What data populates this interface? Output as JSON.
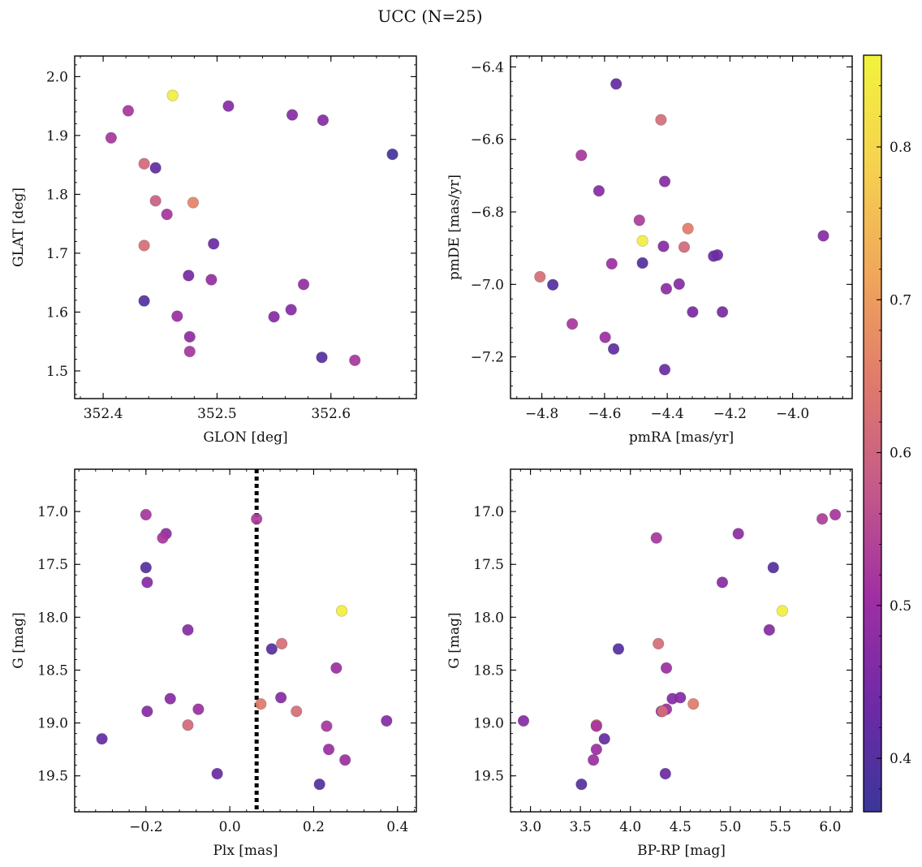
{
  "figure_title": "UCC (N=25)",
  "chart_data": [
    {
      "type": "scatter",
      "name": "glon-glat",
      "xlabel": "GLON [deg]",
      "ylabel": "GLAT [deg]",
      "xlim": [
        352.375,
        352.675
      ],
      "ylim": [
        1.453,
        2.035
      ],
      "xticks": [
        352.4,
        352.5,
        352.6
      ],
      "xtick_labels": [
        "352.4",
        "352.5",
        "352.6"
      ],
      "yticks": [
        1.5,
        1.6,
        1.7,
        1.8,
        1.9,
        2.0
      ],
      "ytick_labels": [
        "1.5",
        "1.6",
        "1.7",
        "1.8",
        "1.9",
        "2.0"
      ],
      "points": [
        {
          "x": 352.461,
          "y": 1.968,
          "c": 0.85
        },
        {
          "x": 352.407,
          "y": 1.896,
          "c": 0.52
        },
        {
          "x": 352.422,
          "y": 1.942,
          "c": 0.52
        },
        {
          "x": 352.51,
          "y": 1.95,
          "c": 0.47
        },
        {
          "x": 352.566,
          "y": 1.935,
          "c": 0.47
        },
        {
          "x": 352.593,
          "y": 1.926,
          "c": 0.47
        },
        {
          "x": 352.654,
          "y": 1.868,
          "c": 0.38
        },
        {
          "x": 352.436,
          "y": 1.852,
          "c": 0.61
        },
        {
          "x": 352.446,
          "y": 1.845,
          "c": 0.42
        },
        {
          "x": 352.446,
          "y": 1.789,
          "c": 0.59
        },
        {
          "x": 352.479,
          "y": 1.786,
          "c": 0.66
        },
        {
          "x": 352.456,
          "y": 1.766,
          "c": 0.52
        },
        {
          "x": 352.436,
          "y": 1.713,
          "c": 0.62
        },
        {
          "x": 352.497,
          "y": 1.716,
          "c": 0.43
        },
        {
          "x": 352.475,
          "y": 1.662,
          "c": 0.45
        },
        {
          "x": 352.495,
          "y": 1.655,
          "c": 0.49
        },
        {
          "x": 352.576,
          "y": 1.647,
          "c": 0.49
        },
        {
          "x": 352.436,
          "y": 1.619,
          "c": 0.4
        },
        {
          "x": 352.465,
          "y": 1.593,
          "c": 0.5
        },
        {
          "x": 352.565,
          "y": 1.604,
          "c": 0.47
        },
        {
          "x": 352.55,
          "y": 1.592,
          "c": 0.47
        },
        {
          "x": 352.476,
          "y": 1.558,
          "c": 0.48
        },
        {
          "x": 352.476,
          "y": 1.533,
          "c": 0.52
        },
        {
          "x": 352.592,
          "y": 1.523,
          "c": 0.4
        },
        {
          "x": 352.621,
          "y": 1.518,
          "c": 0.52
        }
      ]
    },
    {
      "type": "scatter",
      "name": "pmra-pmde",
      "xlabel": "pmRA [mas/yr]",
      "ylabel": "pmDE [mas/yr]",
      "xlim": [
        -4.9,
        -3.81
      ],
      "ylim": [
        -7.315,
        -6.37
      ],
      "xticks": [
        -4.8,
        -4.6,
        -4.4,
        -4.2,
        -4.0
      ],
      "xtick_labels": [
        "−4.8",
        "−4.6",
        "−4.4",
        "−4.2",
        "−4.0"
      ],
      "yticks": [
        -7.2,
        -7.0,
        -6.8,
        -6.6,
        -6.4
      ],
      "ytick_labels": [
        "−7.2",
        "−7.0",
        "−6.8",
        "−6.6",
        "−6.4"
      ],
      "points": [
        {
          "x": -4.563,
          "y": -6.447,
          "c": 0.42
        },
        {
          "x": -4.42,
          "y": -6.546,
          "c": 0.62
        },
        {
          "x": -4.674,
          "y": -6.644,
          "c": 0.52
        },
        {
          "x": -4.408,
          "y": -6.716,
          "c": 0.47
        },
        {
          "x": -4.618,
          "y": -6.742,
          "c": 0.47
        },
        {
          "x": -4.489,
          "y": -6.823,
          "c": 0.53
        },
        {
          "x": -4.334,
          "y": -6.846,
          "c": 0.65
        },
        {
          "x": -4.479,
          "y": -6.88,
          "c": 0.85
        },
        {
          "x": -4.412,
          "y": -6.895,
          "c": 0.47
        },
        {
          "x": -4.346,
          "y": -6.897,
          "c": 0.61
        },
        {
          "x": -4.24,
          "y": -6.919,
          "c": 0.44
        },
        {
          "x": -4.252,
          "y": -6.922,
          "c": 0.43
        },
        {
          "x": -3.902,
          "y": -6.866,
          "c": 0.47
        },
        {
          "x": -4.577,
          "y": -6.943,
          "c": 0.5
        },
        {
          "x": -4.479,
          "y": -6.941,
          "c": 0.4
        },
        {
          "x": -4.806,
          "y": -6.979,
          "c": 0.62
        },
        {
          "x": -4.765,
          "y": -7.001,
          "c": 0.4
        },
        {
          "x": -4.362,
          "y": -6.999,
          "c": 0.47
        },
        {
          "x": -4.403,
          "y": -7.012,
          "c": 0.48
        },
        {
          "x": -4.319,
          "y": -7.076,
          "c": 0.45
        },
        {
          "x": -4.224,
          "y": -7.076,
          "c": 0.45
        },
        {
          "x": -4.703,
          "y": -7.109,
          "c": 0.52
        },
        {
          "x": -4.598,
          "y": -7.146,
          "c": 0.5
        },
        {
          "x": -4.571,
          "y": -7.178,
          "c": 0.42
        },
        {
          "x": -4.408,
          "y": -7.235,
          "c": 0.43
        }
      ]
    },
    {
      "type": "scatter",
      "name": "plx-g",
      "xlabel": "Plx [mas]",
      "ylabel": "G [mag]",
      "xlim": [
        -0.37,
        0.445
      ],
      "ylim": [
        19.84,
        16.6
      ],
      "xticks": [
        -0.2,
        0.0,
        0.2,
        0.4
      ],
      "xtick_labels": [
        "−0.2",
        "0.0",
        "0.2",
        "0.4"
      ],
      "yticks": [
        17.0,
        17.5,
        18.0,
        18.5,
        19.0,
        19.5
      ],
      "ytick_labels": [
        "17.0",
        "17.5",
        "18.0",
        "18.5",
        "19.0",
        "19.5"
      ],
      "vline": 0.064,
      "points": [
        {
          "x": -0.2,
          "y": 17.03,
          "c": 0.52
        },
        {
          "x": 0.064,
          "y": 17.07,
          "c": 0.53
        },
        {
          "x": -0.152,
          "y": 17.21,
          "c": 0.48
        },
        {
          "x": -0.16,
          "y": 17.25,
          "c": 0.52
        },
        {
          "x": -0.2,
          "y": 17.53,
          "c": 0.4
        },
        {
          "x": -0.197,
          "y": 17.67,
          "c": 0.47
        },
        {
          "x": 0.267,
          "y": 17.94,
          "c": 0.85
        },
        {
          "x": -0.1,
          "y": 18.12,
          "c": 0.47
        },
        {
          "x": 0.124,
          "y": 18.25,
          "c": 0.62
        },
        {
          "x": 0.1,
          "y": 18.3,
          "c": 0.4
        },
        {
          "x": 0.254,
          "y": 18.48,
          "c": 0.5
        },
        {
          "x": -0.142,
          "y": 18.77,
          "c": 0.47
        },
        {
          "x": 0.122,
          "y": 18.76,
          "c": 0.47
        },
        {
          "x": 0.074,
          "y": 18.82,
          "c": 0.65
        },
        {
          "x": -0.075,
          "y": 18.87,
          "c": 0.5
        },
        {
          "x": -0.197,
          "y": 18.89,
          "c": 0.47
        },
        {
          "x": 0.159,
          "y": 18.89,
          "c": 0.62
        },
        {
          "x": -0.1,
          "y": 19.02,
          "c": 0.61
        },
        {
          "x": 0.231,
          "y": 19.03,
          "c": 0.52
        },
        {
          "x": 0.374,
          "y": 18.98,
          "c": 0.47
        },
        {
          "x": -0.305,
          "y": 19.15,
          "c": 0.42
        },
        {
          "x": 0.236,
          "y": 19.25,
          "c": 0.5
        },
        {
          "x": 0.275,
          "y": 19.35,
          "c": 0.5
        },
        {
          "x": -0.03,
          "y": 19.48,
          "c": 0.43
        },
        {
          "x": 0.214,
          "y": 19.58,
          "c": 0.4
        }
      ]
    },
    {
      "type": "scatter",
      "name": "bprp-g",
      "xlabel": "BP-RP [mag]",
      "ylabel": "G [mag]",
      "xlim": [
        2.8,
        6.22
      ],
      "ylim": [
        19.84,
        16.6
      ],
      "xticks": [
        3.0,
        3.5,
        4.0,
        4.5,
        5.0,
        5.5,
        6.0
      ],
      "xtick_labels": [
        "3.0",
        "3.5",
        "4.0",
        "4.5",
        "5.0",
        "5.5",
        "6.0"
      ],
      "yticks": [
        17.0,
        17.5,
        18.0,
        18.5,
        19.0,
        19.5
      ],
      "ytick_labels": [
        "17.0",
        "17.5",
        "18.0",
        "18.5",
        "19.0",
        "19.5"
      ],
      "points": [
        {
          "x": 6.05,
          "y": 17.03,
          "c": 0.52
        },
        {
          "x": 5.92,
          "y": 17.07,
          "c": 0.53
        },
        {
          "x": 5.08,
          "y": 17.21,
          "c": 0.48
        },
        {
          "x": 4.26,
          "y": 17.25,
          "c": 0.52
        },
        {
          "x": 5.43,
          "y": 17.53,
          "c": 0.4
        },
        {
          "x": 4.92,
          "y": 17.67,
          "c": 0.47
        },
        {
          "x": 5.52,
          "y": 17.94,
          "c": 0.85
        },
        {
          "x": 5.39,
          "y": 18.12,
          "c": 0.47
        },
        {
          "x": 4.28,
          "y": 18.25,
          "c": 0.62
        },
        {
          "x": 3.88,
          "y": 18.3,
          "c": 0.4
        },
        {
          "x": 4.36,
          "y": 18.48,
          "c": 0.5
        },
        {
          "x": 4.42,
          "y": 18.77,
          "c": 0.47
        },
        {
          "x": 4.5,
          "y": 18.76,
          "c": 0.47
        },
        {
          "x": 4.63,
          "y": 18.82,
          "c": 0.65
        },
        {
          "x": 4.36,
          "y": 18.87,
          "c": 0.5
        },
        {
          "x": 4.31,
          "y": 18.89,
          "c": 0.47
        },
        {
          "x": 4.32,
          "y": 18.89,
          "c": 0.62
        },
        {
          "x": 3.66,
          "y": 19.02,
          "c": 0.61
        },
        {
          "x": 3.66,
          "y": 19.03,
          "c": 0.52
        },
        {
          "x": 2.93,
          "y": 18.98,
          "c": 0.47
        },
        {
          "x": 3.74,
          "y": 19.15,
          "c": 0.42
        },
        {
          "x": 3.66,
          "y": 19.25,
          "c": 0.5
        },
        {
          "x": 3.63,
          "y": 19.35,
          "c": 0.5
        },
        {
          "x": 4.35,
          "y": 19.48,
          "c": 0.43
        },
        {
          "x": 3.51,
          "y": 19.58,
          "c": 0.4
        }
      ]
    }
  ],
  "colorbar": {
    "vmin": 0.365,
    "vmax": 0.86,
    "ticks": [
      0.4,
      0.5,
      0.6,
      0.7,
      0.8
    ],
    "tick_labels": [
      "0.4",
      "0.5",
      "0.6",
      "0.7",
      "0.8"
    ],
    "colors": [
      "#3b3699",
      "#6f2aa6",
      "#a02fa3",
      "#c45a89",
      "#e07b6b",
      "#f0a85a",
      "#f6d24f",
      "#f1f33c"
    ]
  }
}
